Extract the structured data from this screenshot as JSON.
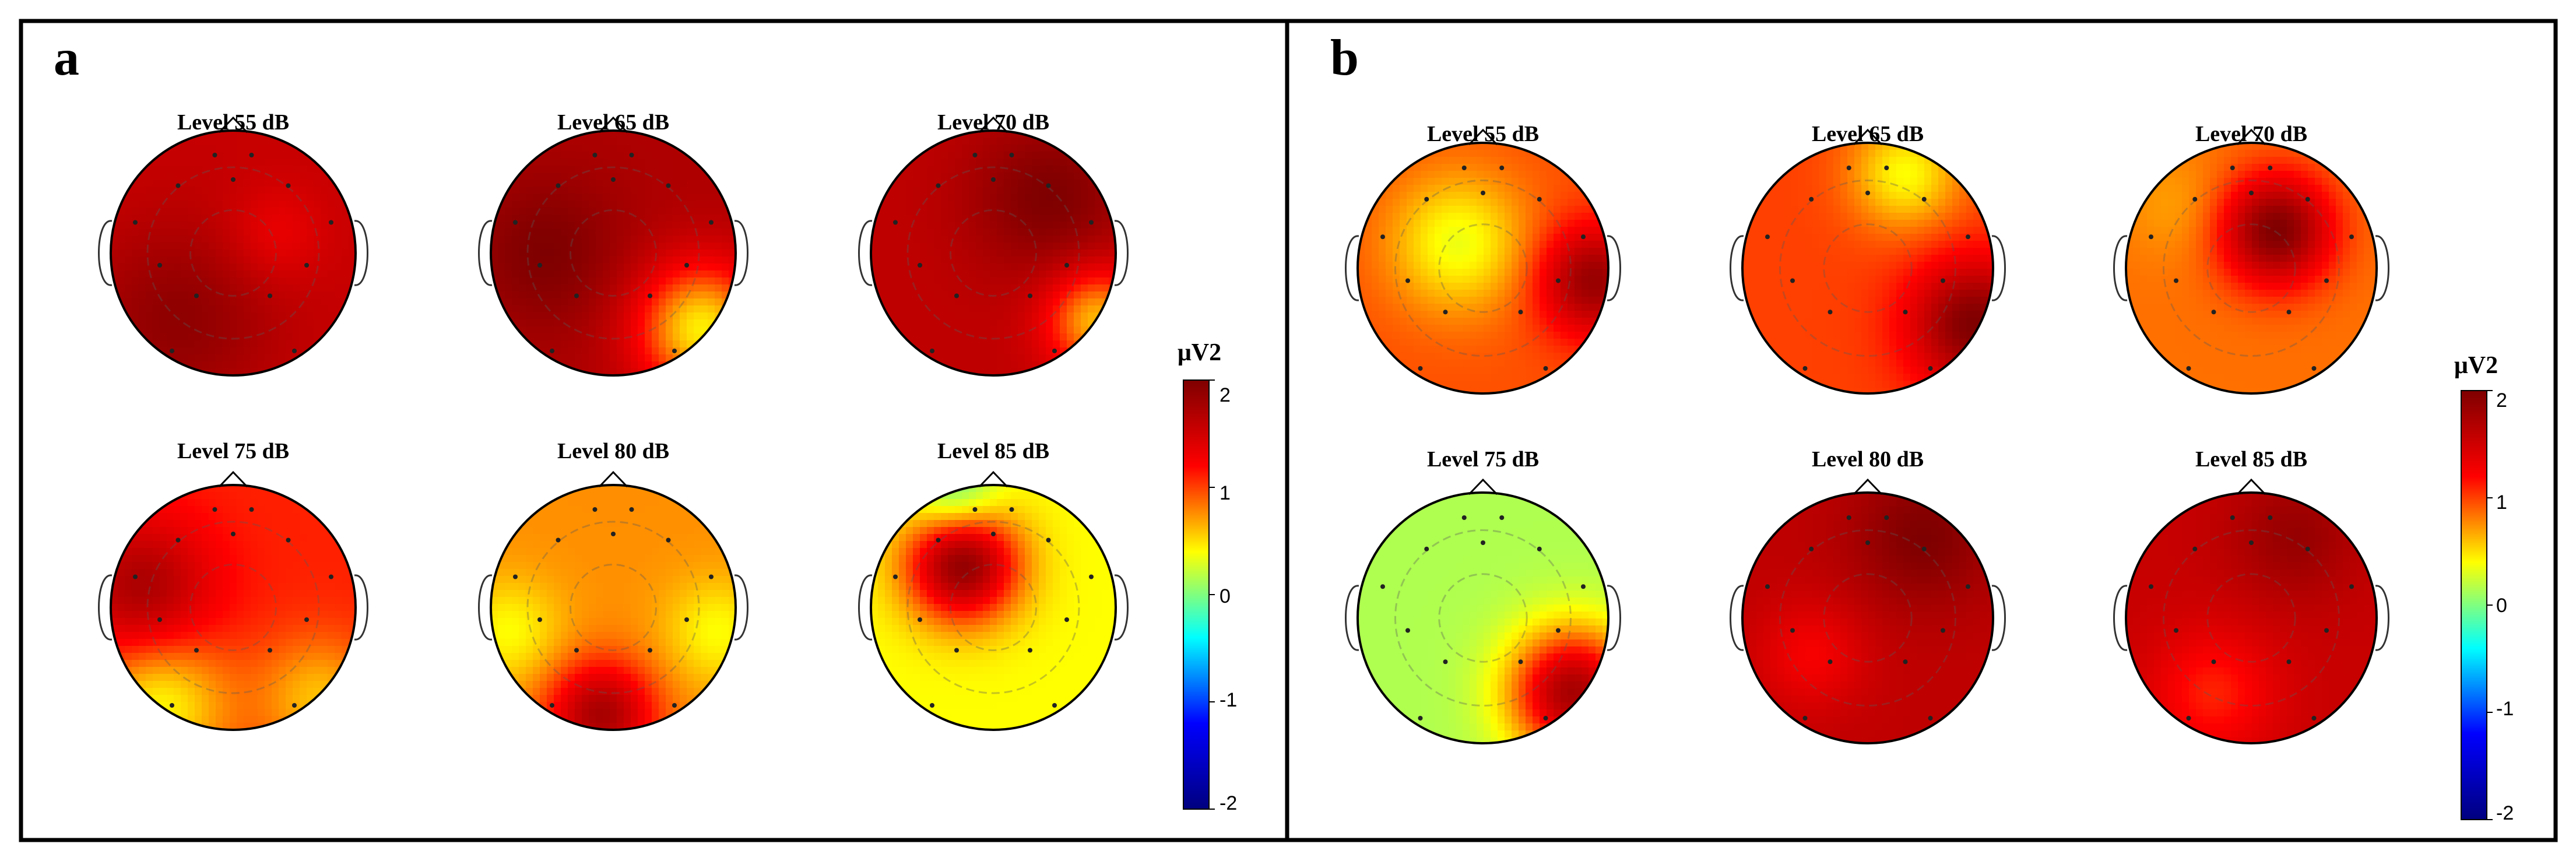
{
  "figure": {
    "colormap_stops": [
      "#00007f",
      "#0000ff",
      "#00ffff",
      "#ffff00",
      "#ff0000",
      "#7f0000"
    ],
    "outline_color": "#000000",
    "panels": [
      {
        "letter": "a",
        "colorbar": {
          "unit": "μV2",
          "min": -2,
          "max": 2,
          "ticks": [
            "2",
            "1",
            "0",
            "-1",
            "-2"
          ]
        },
        "maps": [
          {
            "title": "Level 55 dB",
            "base": 1.55,
            "blobs": [
              [
                -0.45,
                0.55,
                0.55,
                0.35
              ],
              [
                0.35,
                -0.15,
                0.28,
                -0.25
              ]
            ]
          },
          {
            "title": "Level 65 dB",
            "base": 1.7,
            "blobs": [
              [
                -0.55,
                0.0,
                0.45,
                0.3
              ],
              [
                0.72,
                0.62,
                0.38,
                -1.25
              ]
            ]
          },
          {
            "title": "Level 70 dB",
            "base": 1.6,
            "blobs": [
              [
                0.45,
                -0.45,
                0.45,
                0.4
              ],
              [
                0.85,
                0.55,
                0.3,
                -1.0
              ]
            ]
          },
          {
            "title": "Level 75 dB",
            "base": 1.1,
            "blobs": [
              [
                -0.75,
                -0.15,
                0.4,
                0.65
              ],
              [
                -0.6,
                0.8,
                0.4,
                -0.7
              ],
              [
                0.7,
                0.75,
                0.35,
                -0.5
              ]
            ]
          },
          {
            "title": "Level 80 dB",
            "base": 0.75,
            "blobs": [
              [
                -0.1,
                0.88,
                0.3,
                1.0
              ],
              [
                -0.85,
                0.2,
                0.3,
                -0.35
              ],
              [
                0.85,
                0.2,
                0.3,
                -0.35
              ]
            ]
          },
          {
            "title": "Level 85 dB",
            "base": 0.4,
            "blobs": [
              [
                -0.25,
                -0.35,
                0.32,
                1.5
              ],
              [
                -0.3,
                -0.9,
                0.25,
                -0.55
              ]
            ]
          }
        ]
      },
      {
        "letter": "b",
        "colorbar": {
          "unit": "μV2",
          "min": -2,
          "max": 2,
          "ticks": [
            "2",
            "1",
            "0",
            "-1",
            "-2"
          ]
        },
        "maps": [
          {
            "title": "Level 55 dB",
            "base": 0.95,
            "blobs": [
              [
                -0.2,
                -0.2,
                0.38,
                -0.6
              ],
              [
                0.88,
                0.1,
                0.3,
                0.9
              ]
            ]
          },
          {
            "title": "Level 65 dB",
            "base": 1.0,
            "blobs": [
              [
                0.3,
                -0.75,
                0.3,
                -0.6
              ],
              [
                0.85,
                0.45,
                0.35,
                1.0
              ]
            ]
          },
          {
            "title": "Level 70 dB",
            "base": 0.85,
            "blobs": [
              [
                0.2,
                -0.3,
                0.3,
                1.15
              ],
              [
                -0.6,
                -0.5,
                0.3,
                -0.15
              ]
            ]
          },
          {
            "title": "Level 75 dB",
            "base": 0.15,
            "blobs": [
              [
                0.72,
                0.6,
                0.35,
                1.6
              ]
            ]
          },
          {
            "title": "Level 80 dB",
            "base": 1.6,
            "blobs": [
              [
                0.45,
                -0.65,
                0.4,
                0.4
              ],
              [
                -0.45,
                0.3,
                0.3,
                -0.35
              ]
            ]
          },
          {
            "title": "Level 85 dB",
            "base": 1.55,
            "blobs": [
              [
                -0.3,
                0.6,
                0.35,
                -0.45
              ],
              [
                0.35,
                -0.65,
                0.35,
                0.3
              ]
            ]
          }
        ]
      }
    ]
  }
}
